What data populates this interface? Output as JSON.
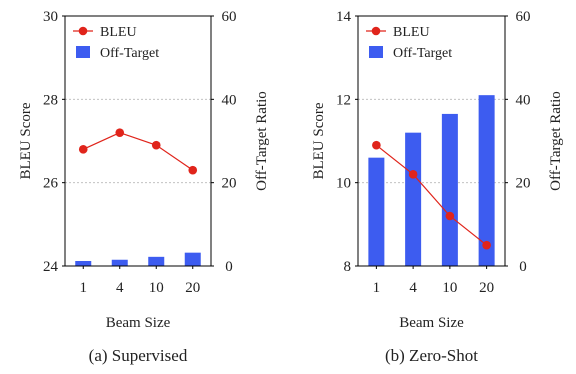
{
  "chart_data": [
    {
      "type": "bar+line",
      "caption": "(a) Supervised",
      "categories": [
        "1",
        "4",
        "10",
        "20"
      ],
      "xlabel": "Beam Size",
      "ylabel_left": "BLEU Score",
      "ylabel_right": "Off-Target Ratio",
      "ylim_left": [
        24,
        30
      ],
      "yticks_left": [
        "24",
        "26",
        "28",
        "30"
      ],
      "ylim_right": [
        0,
        60
      ],
      "yticks_right": [
        "0",
        "20",
        "40",
        "60"
      ],
      "grid": "horizontal dotted",
      "legend_position": "top-left",
      "series": [
        {
          "name": "BLEU",
          "type": "line",
          "axis": "left",
          "color": "#e0241b",
          "values": [
            26.8,
            27.2,
            26.9,
            26.3
          ]
        },
        {
          "name": "Off-Target",
          "type": "bar",
          "axis": "right",
          "color": "#3d5cf0",
          "values": [
            1.2,
            1.5,
            2.2,
            3.2
          ]
        }
      ]
    },
    {
      "type": "bar+line",
      "caption": "(b) Zero-Shot",
      "categories": [
        "1",
        "4",
        "10",
        "20"
      ],
      "xlabel": "Beam Size",
      "ylabel_left": "BLEU Score",
      "ylabel_right": "Off-Target Ratio",
      "ylim_left": [
        8,
        14
      ],
      "yticks_left": [
        "8",
        "10",
        "12",
        "14"
      ],
      "ylim_right": [
        0,
        60
      ],
      "yticks_right": [
        "0",
        "20",
        "40",
        "60"
      ],
      "grid": "horizontal dotted",
      "legend_position": "top-left",
      "series": [
        {
          "name": "BLEU",
          "type": "line",
          "axis": "left",
          "color": "#e0241b",
          "values": [
            10.9,
            10.2,
            9.2,
            8.5
          ]
        },
        {
          "name": "Off-Target",
          "type": "bar",
          "axis": "right",
          "color": "#3d5cf0",
          "values": [
            26,
            32,
            36.5,
            41
          ]
        }
      ]
    }
  ]
}
